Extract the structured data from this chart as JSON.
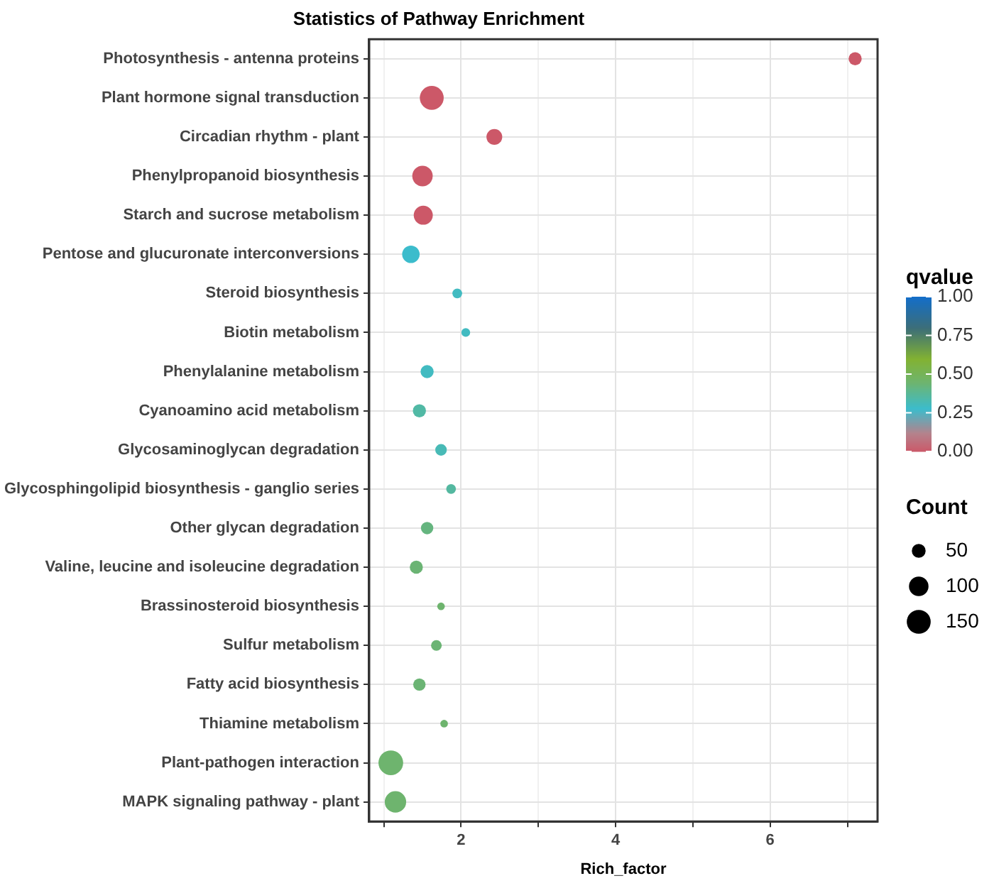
{
  "chart_data": {
    "type": "bubble",
    "title": "Statistics of Pathway Enrichment",
    "xlabel": "Rich_factor",
    "clabel": "qvalue",
    "legend_title": "Count",
    "categories": [
      "Photosynthesis - antenna proteins",
      "Plant hormone signal transduction",
      "Circadian rhythm - plant",
      "Phenylpropanoid biosynthesis",
      "Starch and sucrose metabolism",
      "Pentose and glucuronate interconversions",
      "Steroid biosynthesis",
      "Biotin metabolism",
      "Phenylalanine metabolism",
      "Cyanoamino acid metabolism",
      "Glycosaminoglycan degradation",
      "Glycosphingolipid biosynthesis - ganglio series",
      "Other glycan degradation",
      "Valine, leucine and isoleucine degradation",
      "Brassinosteroid biosynthesis",
      "Sulfur metabolism",
      "Fatty acid biosynthesis",
      "Thiamine metabolism",
      "Plant-pathogen interaction",
      "MAPK signaling pathway - plant"
    ],
    "values": [
      7.1,
      1.62,
      2.43,
      1.5,
      1.51,
      1.35,
      1.95,
      2.06,
      1.56,
      1.46,
      1.74,
      1.87,
      1.56,
      1.42,
      1.74,
      1.68,
      1.46,
      1.78,
      1.09,
      1.15
    ],
    "sizes": [
      45,
      150,
      65,
      110,
      95,
      80,
      25,
      20,
      45,
      45,
      35,
      25,
      40,
      45,
      15,
      30,
      40,
      15,
      160,
      120
    ],
    "cvalues": [
      0.0,
      0.0,
      0.0,
      0.0,
      0.0,
      0.28,
      0.3,
      0.3,
      0.3,
      0.35,
      0.32,
      0.36,
      0.42,
      0.44,
      0.45,
      0.44,
      0.44,
      0.45,
      0.45,
      0.45
    ],
    "size_legend": [
      50,
      100,
      150
    ],
    "clim": [
      0,
      1
    ],
    "cticks": [
      {
        "value": 0,
        "label": "0.00"
      },
      {
        "value": 0.25,
        "label": "0.25"
      },
      {
        "value": 0.5,
        "label": "0.50"
      },
      {
        "value": 0.75,
        "label": "0.75"
      },
      {
        "value": 1,
        "label": "1.00"
      }
    ],
    "xlim": [
      0.81,
      7.39
    ],
    "xticks": [
      {
        "value": 1,
        "label": null
      },
      2,
      {
        "value": 3,
        "label": null
      },
      4,
      {
        "value": 5,
        "label": null
      },
      6,
      {
        "value": 7,
        "label": null
      }
    ],
    "grid": true,
    "orientation": "horizontal"
  }
}
